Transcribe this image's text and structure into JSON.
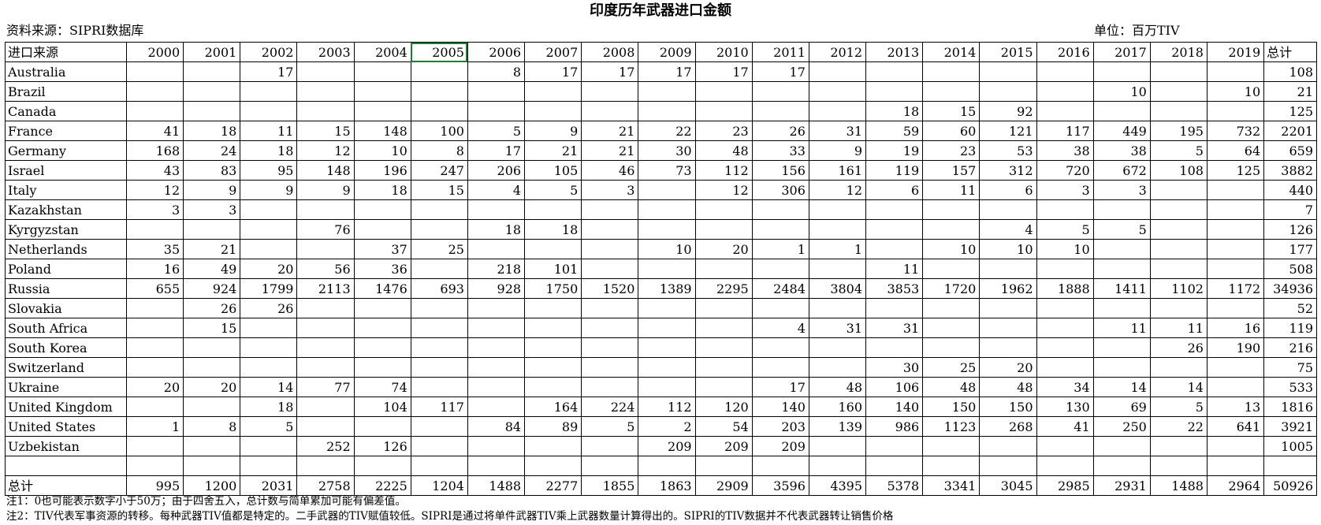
{
  "title": "印度历年武器进口金额",
  "source": "资料来源：SIPRI数据库",
  "unit": "单位：百万TIV",
  "header": {
    "label": "进口来源",
    "years": [
      "2000",
      "2001",
      "2002",
      "2003",
      "2004",
      "2005",
      "2006",
      "2007",
      "2008",
      "2009",
      "2010",
      "2011",
      "2012",
      "2013",
      "2014",
      "2015",
      "2016",
      "2017",
      "2018",
      "2019"
    ],
    "total": "总计"
  },
  "selected_cell": "2005",
  "rows": [
    {
      "country": "Australia",
      "values": [
        "",
        "",
        "17",
        "",
        "",
        "",
        "8",
        "17",
        "17",
        "17",
        "17",
        "17",
        "",
        "",
        "",
        "",
        "",
        "",
        "",
        ""
      ],
      "total": "108"
    },
    {
      "country": "Brazil",
      "values": [
        "",
        "",
        "",
        "",
        "",
        "",
        "",
        "",
        "",
        "",
        "",
        "",
        "",
        "",
        "",
        "",
        "",
        "10",
        "",
        "10"
      ],
      "total": "21"
    },
    {
      "country": "Canada",
      "values": [
        "",
        "",
        "",
        "",
        "",
        "",
        "",
        "",
        "",
        "",
        "",
        "",
        "",
        "18",
        "15",
        "92",
        "",
        "",
        "",
        ""
      ],
      "total": "125"
    },
    {
      "country": "France",
      "values": [
        "41",
        "18",
        "11",
        "15",
        "148",
        "100",
        "5",
        "9",
        "21",
        "22",
        "23",
        "26",
        "31",
        "59",
        "60",
        "121",
        "117",
        "449",
        "195",
        "732"
      ],
      "total": "2201"
    },
    {
      "country": "Germany",
      "values": [
        "168",
        "24",
        "18",
        "12",
        "10",
        "8",
        "17",
        "21",
        "21",
        "30",
        "48",
        "33",
        "9",
        "19",
        "23",
        "53",
        "38",
        "38",
        "5",
        "64"
      ],
      "total": "659"
    },
    {
      "country": "Israel",
      "values": [
        "43",
        "83",
        "95",
        "148",
        "196",
        "247",
        "206",
        "105",
        "46",
        "73",
        "112",
        "156",
        "161",
        "119",
        "157",
        "312",
        "720",
        "672",
        "108",
        "125"
      ],
      "total": "3882"
    },
    {
      "country": "Italy",
      "values": [
        "12",
        "9",
        "9",
        "9",
        "18",
        "15",
        "4",
        "5",
        "3",
        "",
        "12",
        "306",
        "12",
        "6",
        "11",
        "6",
        "3",
        "3",
        "",
        ""
      ],
      "total": "440"
    },
    {
      "country": "Kazakhstan",
      "values": [
        "3",
        "3",
        "",
        "",
        "",
        "",
        "",
        "",
        "",
        "",
        "",
        "",
        "",
        "",
        "",
        "",
        "",
        "",
        "",
        ""
      ],
      "total": "7"
    },
    {
      "country": "Kyrgyzstan",
      "values": [
        "",
        "",
        "",
        "76",
        "",
        "",
        "18",
        "18",
        "",
        "",
        "",
        "",
        "",
        "",
        "",
        "4",
        "5",
        "5",
        "",
        ""
      ],
      "total": "126"
    },
    {
      "country": "Netherlands",
      "values": [
        "35",
        "21",
        "",
        "",
        "37",
        "25",
        "",
        "",
        "",
        "10",
        "20",
        "1",
        "1",
        "",
        "10",
        "10",
        "10",
        "",
        "",
        ""
      ],
      "total": "177"
    },
    {
      "country": "Poland",
      "values": [
        "16",
        "49",
        "20",
        "56",
        "36",
        "",
        "218",
        "101",
        "",
        "",
        "",
        "",
        "",
        "11",
        "",
        "",
        "",
        "",
        "",
        ""
      ],
      "total": "508"
    },
    {
      "country": "Russia",
      "values": [
        "655",
        "924",
        "1799",
        "2113",
        "1476",
        "693",
        "928",
        "1750",
        "1520",
        "1389",
        "2295",
        "2484",
        "3804",
        "3853",
        "1720",
        "1962",
        "1888",
        "1411",
        "1102",
        "1172"
      ],
      "total": "34936"
    },
    {
      "country": "Slovakia",
      "values": [
        "",
        "26",
        "26",
        "",
        "",
        "",
        "",
        "",
        "",
        "",
        "",
        "",
        "",
        "",
        "",
        "",
        "",
        "",
        "",
        ""
      ],
      "total": "52"
    },
    {
      "country": "South Africa",
      "values": [
        "",
        "15",
        "",
        "",
        "",
        "",
        "",
        "",
        "",
        "",
        "",
        "4",
        "31",
        "31",
        "",
        "",
        "",
        "11",
        "11",
        "16"
      ],
      "total": "119"
    },
    {
      "country": "South Korea",
      "values": [
        "",
        "",
        "",
        "",
        "",
        "",
        "",
        "",
        "",
        "",
        "",
        "",
        "",
        "",
        "",
        "",
        "",
        "",
        "26",
        "190"
      ],
      "total": "216"
    },
    {
      "country": "Switzerland",
      "values": [
        "",
        "",
        "",
        "",
        "",
        "",
        "",
        "",
        "",
        "",
        "",
        "",
        "",
        "30",
        "25",
        "20",
        "",
        "",
        "",
        ""
      ],
      "total": "75"
    },
    {
      "country": "Ukraine",
      "values": [
        "20",
        "20",
        "14",
        "77",
        "74",
        "",
        "",
        "",
        "",
        "",
        "",
        "17",
        "48",
        "106",
        "48",
        "48",
        "34",
        "14",
        "14",
        ""
      ],
      "total": "533"
    },
    {
      "country": "United Kingdom",
      "values": [
        "",
        "",
        "18",
        "",
        "104",
        "117",
        "",
        "164",
        "224",
        "112",
        "120",
        "140",
        "160",
        "140",
        "150",
        "150",
        "130",
        "69",
        "5",
        "13"
      ],
      "total": "1816"
    },
    {
      "country": "United States",
      "values": [
        "1",
        "8",
        "5",
        "",
        "",
        "",
        "84",
        "89",
        "5",
        "2",
        "54",
        "203",
        "139",
        "986",
        "1123",
        "268",
        "41",
        "250",
        "22",
        "641"
      ],
      "total": "3921"
    },
    {
      "country": "Uzbekistan",
      "values": [
        "",
        "",
        "",
        "252",
        "126",
        "",
        "",
        "",
        "",
        "209",
        "209",
        "209",
        "",
        "",
        "",
        "",
        "",
        "",
        "",
        ""
      ],
      "total": "1005"
    }
  ],
  "totals": {
    "label": "总计",
    "values": [
      "995",
      "1200",
      "2031",
      "2758",
      "2225",
      "1204",
      "1488",
      "2277",
      "1855",
      "1863",
      "2909",
      "3596",
      "4395",
      "5378",
      "3341",
      "3045",
      "2985",
      "2931",
      "1488",
      "2964"
    ],
    "total": "50926"
  },
  "notes": [
    "注1：0也可能表示数字小于50万；由于四舍五入，总计数与简单累加可能有偏差值。",
    "注2：TIV代表军事资源的转移。每种武器TIV值都是特定的。二手武器的TIV赋值较低。SIPRI是通过将单件武器TIV乘上武器数量计算得出的。SIPRI的TIV数据并不代表武器转让销售价格"
  ]
}
